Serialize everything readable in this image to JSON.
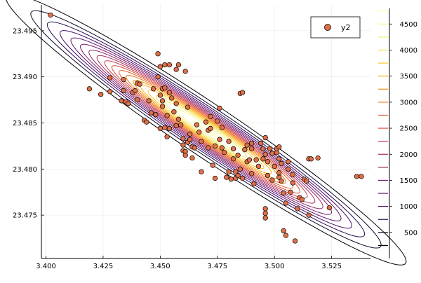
{
  "chart_data": {
    "type": "scatter",
    "title": "",
    "xlabel": "",
    "ylabel": "",
    "xlim": [
      3.398,
      3.542
    ],
    "ylim": [
      23.4703,
      23.4978
    ],
    "x_ticks": [
      3.4,
      3.425,
      3.45,
      3.475,
      3.5,
      3.525
    ],
    "x_tick_labels": [
      "3.400",
      "3.425",
      "3.450",
      "3.475",
      "3.500",
      "3.525"
    ],
    "y_ticks": [
      23.475,
      23.48,
      23.485,
      23.49,
      23.495
    ],
    "y_tick_labels": [
      "23.475",
      "23.480",
      "23.485",
      "23.490",
      "23.495"
    ],
    "grid": true,
    "legend": {
      "placement": "top-right"
    },
    "colorbar": {
      "range": [
        0,
        4800
      ],
      "ticks": [
        500,
        1000,
        1500,
        2000,
        2500,
        3000,
        3500,
        4000,
        4500
      ],
      "tick_labels": [
        "500",
        "1000",
        "1500",
        "2000",
        "2500",
        "3000",
        "3500",
        "4000",
        "4500"
      ],
      "levels": [
        250,
        500,
        750,
        1000,
        1250,
        1500,
        1750,
        2000,
        2250,
        2500,
        2750,
        3000,
        3250,
        3500,
        3750,
        4000,
        4250,
        4500,
        4750
      ]
    },
    "contour": {
      "center": [
        3.47,
        23.4843
      ],
      "peak": 4800,
      "major_direction": [
        0.036,
        -0.00595
      ],
      "minor_direction": [
        0.0018,
        0.0011
      ],
      "colors": [
        "#000004",
        "#0d0829",
        "#280b54",
        "#450a69",
        "#5f136e",
        "#781c6d",
        "#932667",
        "#ac2f5e",
        "#c43c4e",
        "#d84c3e",
        "#e8602d",
        "#f37819",
        "#f9920a",
        "#fcad12",
        "#fac62d",
        "#f5db4c",
        "#f1ed71",
        "#f4f891",
        "#fcffa4"
      ]
    },
    "series": [
      {
        "name": "y2",
        "color": "#e26f46",
        "points": [
          [
            3.402,
            23.4967
          ],
          [
            3.419,
            23.4887
          ],
          [
            3.424,
            23.4881
          ],
          [
            3.428,
            23.4899
          ],
          [
            3.428,
            23.4884
          ],
          [
            3.433,
            23.4874
          ],
          [
            3.434,
            23.4897
          ],
          [
            3.434,
            23.4885
          ],
          [
            3.435,
            23.4873
          ],
          [
            3.436,
            23.4871
          ],
          [
            3.438,
            23.4883
          ],
          [
            3.439,
            23.4885
          ],
          [
            3.44,
            23.4875
          ],
          [
            3.44,
            23.4893
          ],
          [
            3.441,
            23.4892
          ],
          [
            3.443,
            23.4853
          ],
          [
            3.444,
            23.4851
          ],
          [
            3.445,
            23.4874
          ],
          [
            3.446,
            23.4861
          ],
          [
            3.447,
            23.4887
          ],
          [
            3.448,
            23.4859
          ],
          [
            3.449,
            23.49
          ],
          [
            3.449,
            23.4925
          ],
          [
            3.45,
            23.4911
          ],
          [
            3.45,
            23.488
          ],
          [
            3.45,
            23.4844
          ],
          [
            3.451,
            23.4887
          ],
          [
            3.451,
            23.4874
          ],
          [
            3.451,
            23.4868
          ],
          [
            3.452,
            23.4913
          ],
          [
            3.452,
            23.4888
          ],
          [
            3.452,
            23.4845
          ],
          [
            3.453,
            23.4858
          ],
          [
            3.453,
            23.4835
          ],
          [
            3.454,
            23.4913
          ],
          [
            3.454,
            23.4883
          ],
          [
            3.454,
            23.4844
          ],
          [
            3.455,
            23.4877
          ],
          [
            3.456,
            23.4862
          ],
          [
            3.457,
            23.4908
          ],
          [
            3.457,
            23.4871
          ],
          [
            3.457,
            23.4847
          ],
          [
            3.458,
            23.4913
          ],
          [
            3.458,
            23.4854
          ],
          [
            3.459,
            23.4848
          ],
          [
            3.46,
            23.4833
          ],
          [
            3.46,
            23.482
          ],
          [
            3.46,
            23.4826
          ],
          [
            3.461,
            23.4906
          ],
          [
            3.461,
            23.4819
          ],
          [
            3.461,
            23.4815
          ],
          [
            3.462,
            23.4829
          ],
          [
            3.462,
            23.4867
          ],
          [
            3.463,
            23.4838
          ],
          [
            3.463,
            23.4832
          ],
          [
            3.464,
            23.4824
          ],
          [
            3.464,
            23.4812
          ],
          [
            3.465,
            23.4823
          ],
          [
            3.466,
            23.4848
          ],
          [
            3.467,
            23.484
          ],
          [
            3.468,
            23.4797
          ],
          [
            3.468,
            23.483
          ],
          [
            3.47,
            23.4851
          ],
          [
            3.471,
            23.4842
          ],
          [
            3.471,
            23.4823
          ],
          [
            3.472,
            23.4844
          ],
          [
            3.472,
            23.4857
          ],
          [
            3.473,
            23.4804
          ],
          [
            3.474,
            23.4825
          ],
          [
            3.474,
            23.479
          ],
          [
            3.475,
            23.4852
          ],
          [
            3.476,
            23.4866
          ],
          [
            3.476,
            23.4832
          ],
          [
            3.477,
            23.4823
          ],
          [
            3.477,
            23.4845
          ],
          [
            3.478,
            23.4818
          ],
          [
            3.479,
            23.4791
          ],
          [
            3.48,
            23.4797
          ],
          [
            3.48,
            23.483
          ],
          [
            3.481,
            23.4789
          ],
          [
            3.482,
            23.4811
          ],
          [
            3.482,
            23.4822
          ],
          [
            3.483,
            23.4797
          ],
          [
            3.483,
            23.479
          ],
          [
            3.484,
            23.4815
          ],
          [
            3.484,
            23.4793
          ],
          [
            3.485,
            23.48
          ],
          [
            3.485,
            23.4882
          ],
          [
            3.486,
            23.4883
          ],
          [
            3.486,
            23.479
          ],
          [
            3.487,
            23.4821
          ],
          [
            3.488,
            23.4826
          ],
          [
            3.488,
            23.4808
          ],
          [
            3.489,
            23.481
          ],
          [
            3.49,
            23.4822
          ],
          [
            3.49,
            23.4828
          ],
          [
            3.49,
            23.4795
          ],
          [
            3.491,
            23.4784
          ],
          [
            3.492,
            23.481
          ],
          [
            3.493,
            23.4803
          ],
          [
            3.494,
            23.4828
          ],
          [
            3.495,
            23.4822
          ],
          [
            3.495,
            23.4811
          ],
          [
            3.496,
            23.4834
          ],
          [
            3.496,
            23.4816
          ],
          [
            3.496,
            23.4757
          ],
          [
            3.496,
            23.4752
          ],
          [
            3.496,
            23.4747
          ],
          [
            3.497,
            23.4793
          ],
          [
            3.497,
            23.4808
          ],
          [
            3.498,
            23.4822
          ],
          [
            3.499,
            23.4788
          ],
          [
            3.499,
            23.4817
          ],
          [
            3.5,
            23.4803
          ],
          [
            3.501,
            23.4818
          ],
          [
            3.501,
            23.4822
          ],
          [
            3.502,
            23.4811
          ],
          [
            3.502,
            23.4824
          ],
          [
            3.502,
            23.4791
          ],
          [
            3.502,
            23.4796
          ],
          [
            3.503,
            23.4787
          ],
          [
            3.503,
            23.4806
          ],
          [
            3.504,
            23.4774
          ],
          [
            3.504,
            23.4733
          ],
          [
            3.505,
            23.4728
          ],
          [
            3.505,
            23.4763
          ],
          [
            3.506,
            23.48
          ],
          [
            3.506,
            23.4808
          ],
          [
            3.507,
            23.4775
          ],
          [
            3.508,
            23.4794
          ],
          [
            3.508,
            23.4785
          ],
          [
            3.509,
            23.4722
          ],
          [
            3.51,
            23.4757
          ],
          [
            3.511,
            23.4769
          ],
          [
            3.512,
            23.4767
          ],
          [
            3.513,
            23.4789
          ],
          [
            3.514,
            23.4787
          ],
          [
            3.515,
            23.4811
          ],
          [
            3.515,
            23.475
          ],
          [
            3.516,
            23.4811
          ],
          [
            3.519,
            23.4812
          ],
          [
            3.524,
            23.4758
          ],
          [
            3.536,
            23.4792
          ],
          [
            3.538,
            23.4792
          ]
        ]
      }
    ]
  }
}
